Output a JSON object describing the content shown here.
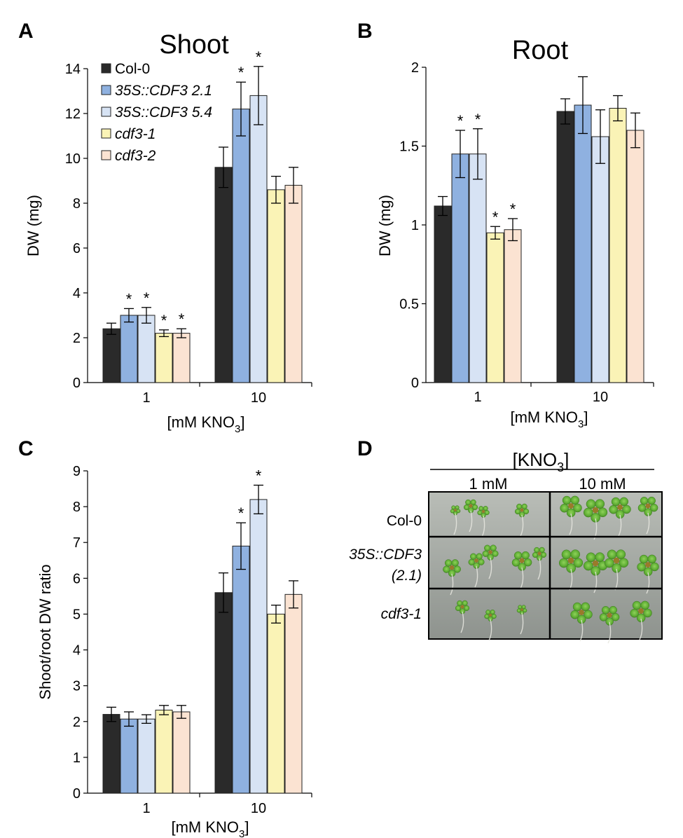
{
  "colors": {
    "Col-0": "#2a2a2a",
    "35S::CDF3 2.1": "#8fb1e0",
    "35S::CDF3 5.4": "#d7e3f4",
    "cdf3-1": "#faf3b6",
    "cdf3-2": "#fbe3d2"
  },
  "chart_data": [
    {
      "panel": "A",
      "type": "bar",
      "title": "Shoot",
      "ylabel": "DW (mg)",
      "xlabel_main": "[mM KNO",
      "xlabel_sub": "3",
      "xlabel_end": "]",
      "categories": [
        "1",
        "10"
      ],
      "ylim": [
        0,
        14
      ],
      "yticks": [
        "0",
        "2",
        "4",
        "6",
        "8",
        "10",
        "12",
        "14"
      ],
      "series": [
        {
          "name": "Col-0",
          "values": [
            2.4,
            9.6
          ],
          "errors": [
            0.25,
            0.9
          ],
          "sig": [
            "",
            ""
          ]
        },
        {
          "name": "35S::CDF3 2.1",
          "values": [
            3.0,
            12.2
          ],
          "errors": [
            0.3,
            1.2
          ],
          "sig": [
            "*",
            "*"
          ]
        },
        {
          "name": "35S::CDF3 5.4",
          "values": [
            3.0,
            12.8
          ],
          "errors": [
            0.35,
            1.3
          ],
          "sig": [
            "*",
            "*"
          ]
        },
        {
          "name": "cdf3-1",
          "values": [
            2.2,
            8.6
          ],
          "errors": [
            0.15,
            0.6
          ],
          "sig": [
            "*",
            ""
          ]
        },
        {
          "name": "cdf3-2",
          "values": [
            2.2,
            8.8
          ],
          "errors": [
            0.2,
            0.8
          ],
          "sig": [
            "*",
            ""
          ]
        }
      ],
      "legend": [
        {
          "label": "Col-0",
          "italic": false
        },
        {
          "label": "35S::CDF3 2.1",
          "italic": true
        },
        {
          "label": "35S::CDF3 5.4",
          "italic": true
        },
        {
          "label": "cdf3-1",
          "italic": true
        },
        {
          "label": "cdf3-2",
          "italic": true
        }
      ]
    },
    {
      "panel": "B",
      "type": "bar",
      "title": "Root",
      "ylabel": "DW (mg)",
      "xlabel_main": "[mM KNO",
      "xlabel_sub": "3",
      "xlabel_end": "]",
      "categories": [
        "1",
        "10"
      ],
      "ylim": [
        0,
        2
      ],
      "yticks": [
        "0",
        "0.5",
        "1",
        "1.5",
        "2"
      ],
      "series": [
        {
          "name": "Col-0",
          "values": [
            1.12,
            1.72
          ],
          "errors": [
            0.06,
            0.08
          ],
          "sig": [
            "",
            ""
          ]
        },
        {
          "name": "35S::CDF3 2.1",
          "values": [
            1.45,
            1.76
          ],
          "errors": [
            0.15,
            0.18
          ],
          "sig": [
            "*",
            ""
          ]
        },
        {
          "name": "35S::CDF3 5.4",
          "values": [
            1.45,
            1.56
          ],
          "errors": [
            0.16,
            0.17
          ],
          "sig": [
            "*",
            ""
          ]
        },
        {
          "name": "cdf3-1",
          "values": [
            0.95,
            1.74
          ],
          "errors": [
            0.04,
            0.08
          ],
          "sig": [
            "*",
            ""
          ]
        },
        {
          "name": "cdf3-2",
          "values": [
            0.97,
            1.6
          ],
          "errors": [
            0.07,
            0.11
          ],
          "sig": [
            "*",
            ""
          ]
        }
      ]
    },
    {
      "panel": "C",
      "type": "bar",
      "title": "",
      "ylabel": "Shoot/root DW ratio",
      "xlabel_main": "[mM KNO",
      "xlabel_sub": "3",
      "xlabel_end": "]",
      "categories": [
        "1",
        "10"
      ],
      "ylim": [
        0,
        9
      ],
      "yticks": [
        "0",
        "1",
        "2",
        "3",
        "4",
        "5",
        "6",
        "7",
        "8",
        "9"
      ],
      "series": [
        {
          "name": "Col-0",
          "values": [
            2.2,
            5.6
          ],
          "errors": [
            0.2,
            0.55
          ],
          "sig": [
            "",
            ""
          ]
        },
        {
          "name": "35S::CDF3 2.1",
          "values": [
            2.07,
            6.9
          ],
          "errors": [
            0.2,
            0.65
          ],
          "sig": [
            "",
            "*"
          ]
        },
        {
          "name": "35S::CDF3 5.4",
          "values": [
            2.07,
            8.2
          ],
          "errors": [
            0.12,
            0.4
          ],
          "sig": [
            "",
            "*"
          ]
        },
        {
          "name": "cdf3-1",
          "values": [
            2.32,
            5.0
          ],
          "errors": [
            0.13,
            0.25
          ],
          "sig": [
            "",
            ""
          ]
        },
        {
          "name": "cdf3-2",
          "values": [
            2.27,
            5.55
          ],
          "errors": [
            0.18,
            0.38
          ],
          "sig": [
            "",
            ""
          ]
        }
      ]
    }
  ],
  "panel_d": {
    "letter": "D",
    "header_main": "[KNO",
    "header_sub": "3",
    "header_end": "]",
    "columns": [
      "1 mM",
      "10 mM"
    ],
    "rows": [
      {
        "lines": [
          "Col-0"
        ],
        "italic": false
      },
      {
        "lines": [
          "35S::CDF3",
          "(2.1)"
        ],
        "italic": true
      },
      {
        "lines": [
          "cdf3-1"
        ],
        "italic": true
      }
    ]
  }
}
